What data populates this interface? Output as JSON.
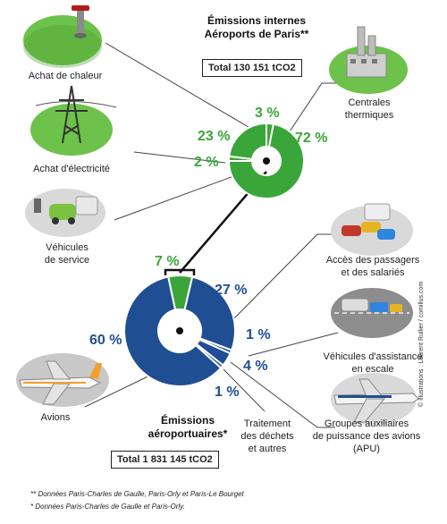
{
  "internal": {
    "title_line1": "Émissions internes",
    "title_line2": "Aéroports de Paris**",
    "total": "Total 130 151 tCO2",
    "color": "#3aa63a",
    "segments": [
      {
        "label": "3 %",
        "value": 3
      },
      {
        "label": "72 %",
        "value": 72
      },
      {
        "label": "2 %",
        "value": 2
      },
      {
        "label": "23 %",
        "value": 23
      }
    ]
  },
  "airport": {
    "title_line1": "Émissions",
    "title_line2": "aéroportuaires*",
    "total": "Total 1 831 145 tCO2",
    "color": "#1f4e93",
    "segments": [
      {
        "label": "7 %",
        "value": 7
      },
      {
        "label": "27 %",
        "value": 27
      },
      {
        "label": "1 %",
        "value": 1
      },
      {
        "label": "4 %",
        "value": 4
      },
      {
        "label": "1 %",
        "value": 1
      },
      {
        "label": "60 %",
        "value": 60
      }
    ]
  },
  "labels": {
    "achat_chaleur": "Achat de chaleur",
    "achat_electricite": "Achat d'électricité",
    "vehicules_service_1": "Véhicules",
    "vehicules_service_2": "de service",
    "centrales_1": "Centrales",
    "centrales_2": "thermiques",
    "acces_1": "Accès des passagers",
    "acces_2": "et des salariés",
    "assistance_1": "Véhicules d'assistance",
    "assistance_2": "en escale",
    "apu_1": "Groupes auxiliaires",
    "apu_2": "de puissance des avions",
    "apu_3": "(APU)",
    "dechets_1": "Traitement",
    "dechets_2": "des déchets",
    "dechets_3": "et autres",
    "avions": "Avions"
  },
  "footnotes": {
    "note1": "** Données Paris-Charles de Gaulle, Paris-Orly et Paris-Le Bourget",
    "note2": "* Données Paris-Charles de Gaulle et Paris-Orly."
  },
  "credit": "© Illustrations : Laurent Rullier / comillus.com",
  "icons": [
    "heat-pipe-icon",
    "power-pylon-icon",
    "service-vehicles-icon",
    "power-plant-icon",
    "parked-cars-icon",
    "ground-vehicles-icon",
    "apu-plane-icon",
    "airplane-icon"
  ]
}
